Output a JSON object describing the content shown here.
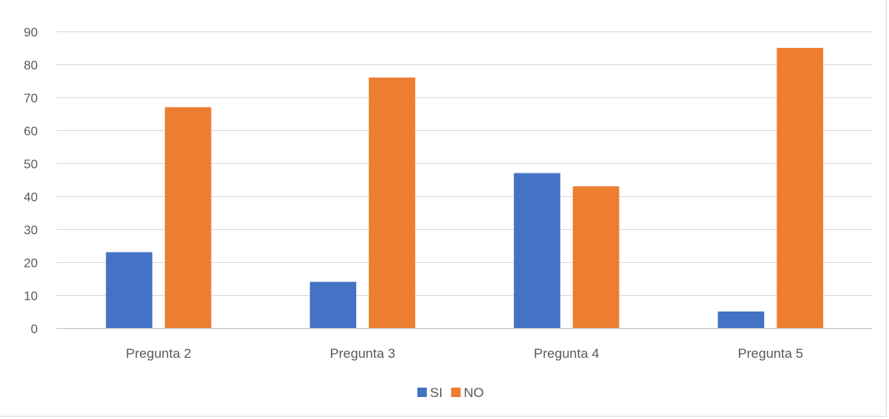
{
  "chart_data": {
    "type": "bar",
    "title": "",
    "xlabel": "",
    "ylabel": "",
    "categories": [
      "Pregunta 2",
      "Pregunta 3",
      "Pregunta 4",
      "Pregunta 5"
    ],
    "series": [
      {
        "name": "SI",
        "values": [
          23,
          14,
          47,
          5
        ],
        "color": "#4472C4"
      },
      {
        "name": "NO",
        "values": [
          67,
          76,
          43,
          85
        ],
        "color": "#ED7D31"
      }
    ],
    "ylim": [
      0,
      90
    ],
    "yticks": [
      0,
      10,
      20,
      30,
      40,
      50,
      60,
      70,
      80,
      90
    ],
    "grid": true,
    "legend_position": "bottom"
  }
}
